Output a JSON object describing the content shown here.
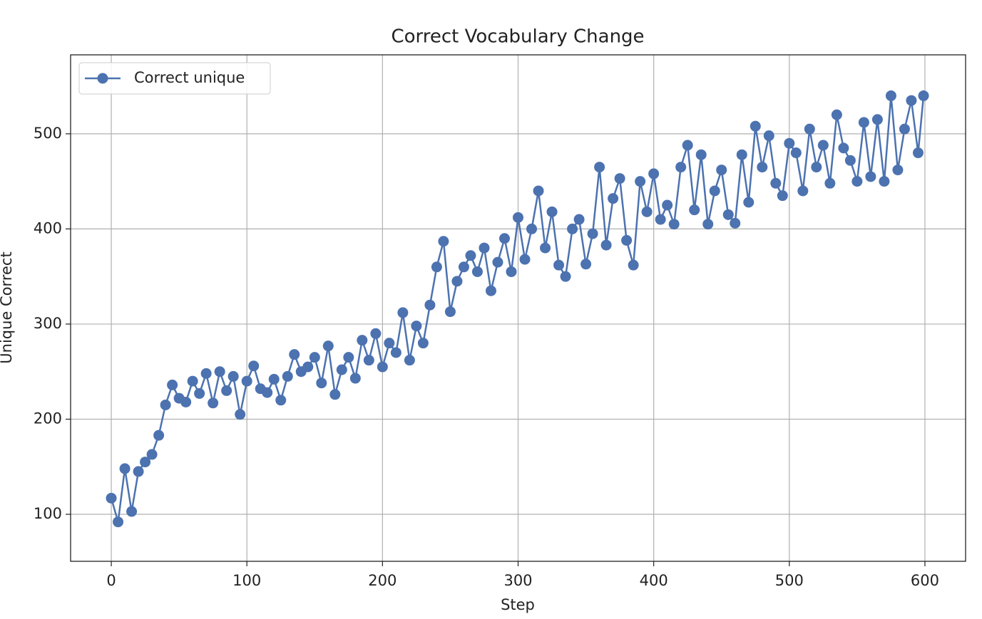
{
  "chart_data": {
    "type": "line",
    "title": "Correct Vocabulary Change",
    "x_label": "Step",
    "y_label": "Unique Correct",
    "x": [
      0,
      5,
      10,
      15,
      20,
      25,
      30,
      35,
      40,
      45,
      50,
      55,
      60,
      65,
      70,
      75,
      80,
      85,
      90,
      95,
      100,
      105,
      110,
      115,
      120,
      125,
      130,
      135,
      140,
      145,
      150,
      155,
      160,
      165,
      170,
      175,
      180,
      185,
      190,
      195,
      200,
      205,
      210,
      215,
      220,
      225,
      230,
      235,
      240,
      245,
      250,
      255,
      260,
      265,
      270,
      275,
      280,
      285,
      290,
      295,
      300,
      305,
      310,
      315,
      320,
      325,
      330,
      335,
      340,
      345,
      350,
      355,
      360,
      365,
      370,
      375,
      380,
      385,
      390,
      395,
      400,
      405,
      410,
      415,
      420,
      425,
      430,
      435,
      440,
      445,
      450,
      455,
      460,
      465,
      470,
      475,
      480,
      485,
      490,
      495,
      500,
      505,
      510,
      515,
      520,
      525,
      530,
      535,
      540,
      545,
      550,
      555,
      560,
      565,
      570,
      575,
      580,
      585,
      590,
      595,
      599
    ],
    "series": [
      {
        "name": "Correct unique",
        "color": "#4c72b0",
        "values": [
          117,
          92,
          148,
          103,
          145,
          155,
          163,
          183,
          215,
          236,
          222,
          218,
          240,
          227,
          248,
          217,
          250,
          230,
          245,
          205,
          240,
          256,
          232,
          228,
          242,
          220,
          245,
          268,
          250,
          255,
          265,
          238,
          277,
          226,
          252,
          265,
          243,
          283,
          262,
          290,
          255,
          280,
          270,
          312,
          262,
          298,
          280,
          320,
          360,
          387,
          313,
          345,
          360,
          372,
          355,
          380,
          335,
          365,
          390,
          355,
          412,
          368,
          400,
          440,
          380,
          418,
          362,
          350,
          400,
          410,
          363,
          395,
          465,
          383,
          432,
          453,
          388,
          362,
          450,
          418,
          458,
          410,
          425,
          405,
          465,
          488,
          420,
          478,
          405,
          440,
          462,
          415,
          406,
          478,
          428,
          508,
          465,
          498,
          448,
          435,
          490,
          480,
          440,
          505,
          465,
          488,
          448,
          520,
          485,
          472,
          450,
          512,
          455,
          515,
          450,
          540,
          462,
          505,
          535,
          480,
          540
        ]
      }
    ],
    "xlim": [
      -30,
      630
    ],
    "ylim": [
      50.6,
      583
    ],
    "xticks": [
      0,
      100,
      200,
      300,
      400,
      500,
      600
    ],
    "yticks": [
      100,
      200,
      300,
      400,
      500
    ],
    "grid": true,
    "legend": "upper left"
  }
}
